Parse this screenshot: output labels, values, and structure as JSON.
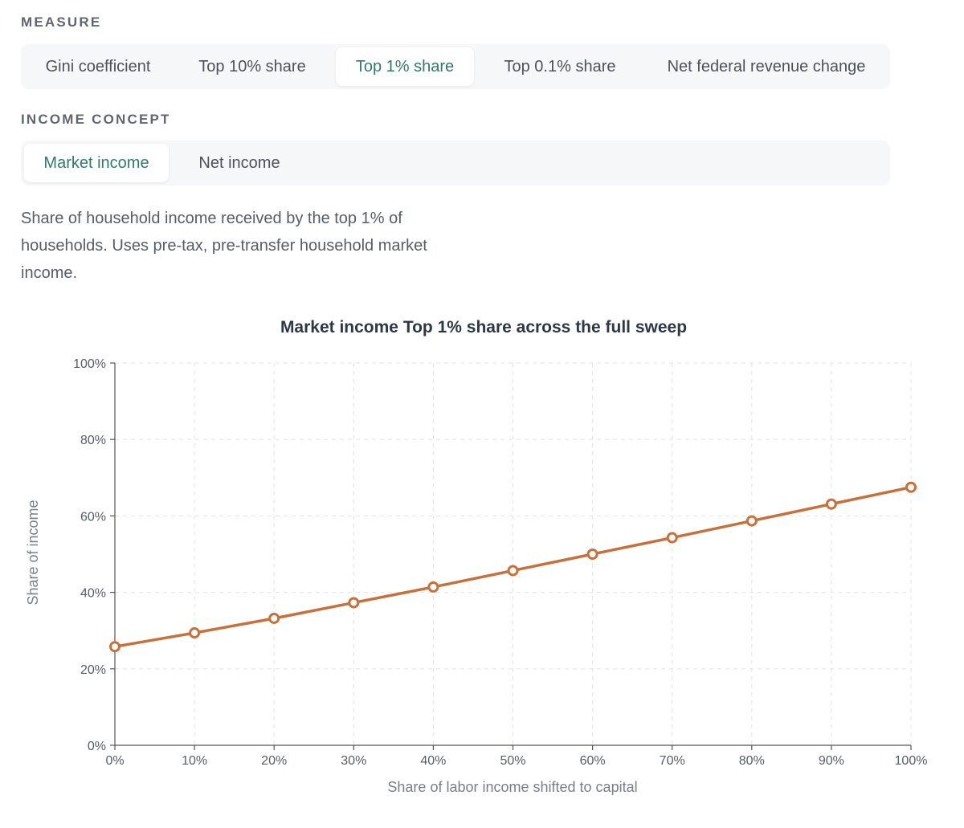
{
  "measure": {
    "label": "MEASURE",
    "options": [
      {
        "label": "Gini coefficient",
        "active": false
      },
      {
        "label": "Top 10% share",
        "active": false
      },
      {
        "label": "Top 1% share",
        "active": true
      },
      {
        "label": "Top 0.1% share",
        "active": false
      },
      {
        "label": "Net federal revenue change",
        "active": false
      }
    ]
  },
  "income_concept": {
    "label": "INCOME CONCEPT",
    "options": [
      {
        "label": "Market income",
        "active": true
      },
      {
        "label": "Net income",
        "active": false
      }
    ]
  },
  "description": "Share of household income received by the top 1% of households. Uses pre-tax, pre-transfer household market income.",
  "colors": {
    "accent": "#2f7a6a",
    "series_line": "#c8703a",
    "panel_bg": "#f6f7f9"
  },
  "chart_data": {
    "type": "line",
    "title": "Market income Top 1% share across the full sweep",
    "xlabel": "Share of labor income shifted to capital",
    "ylabel": "Share of income",
    "x": [
      0,
      10,
      20,
      30,
      40,
      50,
      60,
      70,
      80,
      90,
      100
    ],
    "x_tick_labels": [
      "0%",
      "10%",
      "20%",
      "30%",
      "40%",
      "50%",
      "60%",
      "70%",
      "80%",
      "90%",
      "100%"
    ],
    "y_ticks": [
      0,
      20,
      40,
      60,
      80,
      100
    ],
    "y_tick_labels": [
      "0%",
      "20%",
      "40%",
      "60%",
      "80%",
      "100%"
    ],
    "xlim": [
      0,
      100
    ],
    "ylim": [
      0,
      100
    ],
    "grid": true,
    "legend": "none",
    "series": [
      {
        "values": [
          25.8,
          29.4,
          33.2,
          37.3,
          41.4,
          45.7,
          50.0,
          54.3,
          58.7,
          63.1,
          67.5
        ],
        "marker": "hollow-circle"
      }
    ]
  }
}
